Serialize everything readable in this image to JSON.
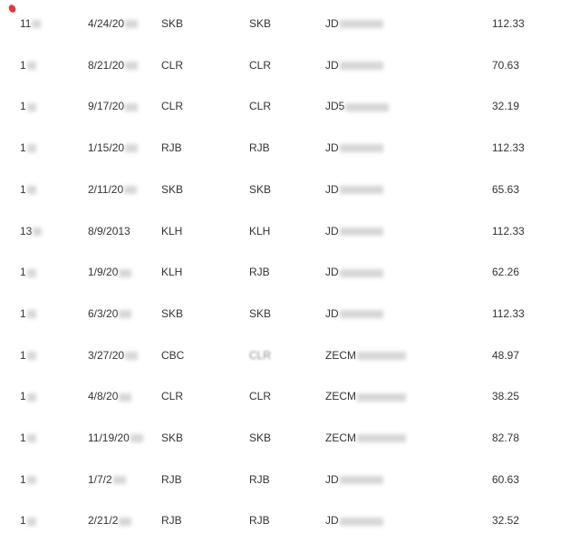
{
  "rows": [
    {
      "id": "11",
      "date": "4/24/20",
      "a": "SKB",
      "b": "SKB",
      "ref": "JD",
      "amount": "112.33"
    },
    {
      "id": "1",
      "date": "8/21/20",
      "a": "CLR",
      "b": "CLR",
      "ref": "JD",
      "amount": "70.63"
    },
    {
      "id": "1",
      "date": "9/17/20",
      "a": "CLR",
      "b": "CLR",
      "ref": "JD5",
      "amount": "32.19"
    },
    {
      "id": "1",
      "date": "1/15/20",
      "a": "RJB",
      "b": "RJB",
      "ref": "JD",
      "amount": "112.33"
    },
    {
      "id": "1",
      "date": "2/11/20",
      "a": "SKB",
      "b": "SKB",
      "ref": "JD",
      "amount": "65.63"
    },
    {
      "id": "13",
      "date": "8/9/2013",
      "a": "KLH",
      "b": "KLH",
      "ref": "JD",
      "amount": "112.33"
    },
    {
      "id": "1",
      "date": "1/9/20",
      "a": "KLH",
      "b": "RJB",
      "ref": "JD",
      "amount": "62.26"
    },
    {
      "id": "1",
      "date": "6/3/20",
      "a": "SKB",
      "b": "SKB",
      "ref": "JD",
      "amount": "112.33"
    },
    {
      "id": "1",
      "date": "3/27/20",
      "a": "CBC",
      "b": "CLR",
      "ref": "ZECM",
      "amount": "48.97"
    },
    {
      "id": "1",
      "date": "4/8/20",
      "a": "CLR",
      "b": "CLR",
      "ref": "ZECM",
      "amount": "38.25"
    },
    {
      "id": "1",
      "date": "11/19/20",
      "a": "SKB",
      "b": "SKB",
      "ref": "ZECM",
      "amount": "82.78"
    },
    {
      "id": "1",
      "date": "1/7/2",
      "a": "RJB",
      "b": "RJB",
      "ref": "JD",
      "amount": "60.63"
    },
    {
      "id": "1",
      "date": "2/21/2",
      "a": "RJB",
      "b": "RJB",
      "ref": "JD",
      "amount": "32.52"
    }
  ],
  "colors": {
    "marker": "#e0393e",
    "text": "#333333"
  }
}
